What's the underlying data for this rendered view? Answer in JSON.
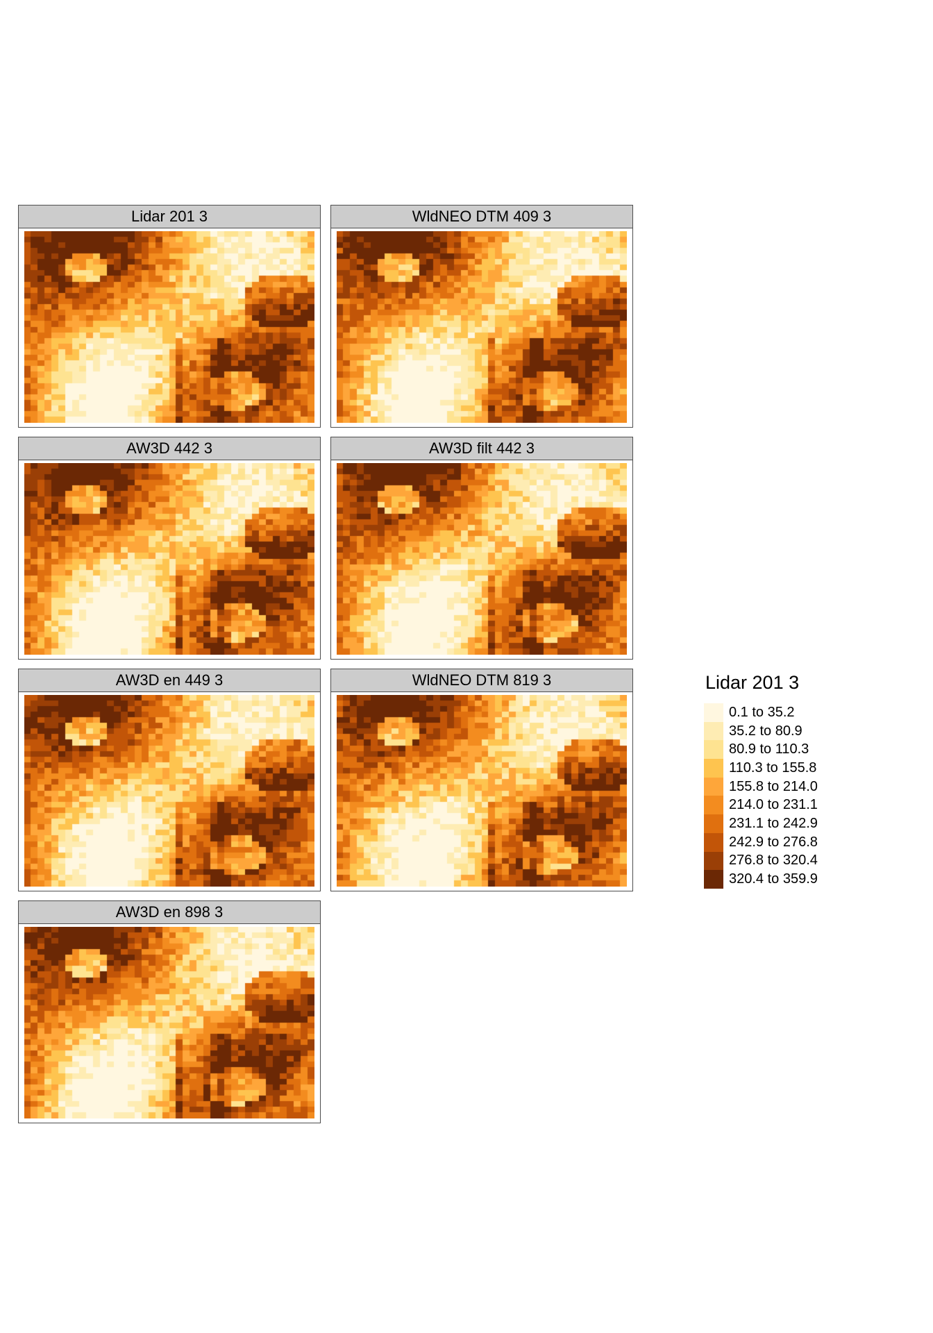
{
  "panels": [
    {
      "title": "Lidar 201 3",
      "seed": 11
    },
    {
      "title": "WldNEO DTM 409 3",
      "seed": 23
    },
    {
      "title": "AW3D 442 3",
      "seed": 37
    },
    {
      "title": "AW3D filt 442 3",
      "seed": 41
    },
    {
      "title": "AW3D en 449 3",
      "seed": 53
    },
    {
      "title": "WldNEO DTM 819 3",
      "seed": 67
    },
    {
      "title": "AW3D en 898 3",
      "seed": 79
    }
  ],
  "legend": {
    "title": "Lidar 201 3",
    "classes": [
      {
        "label": "0.1 to 35.2",
        "color": "#fff7e0"
      },
      {
        "label": "35.2 to 80.9",
        "color": "#feecb3"
      },
      {
        "label": "80.9 to 110.3",
        "color": "#fee391"
      },
      {
        "label": "110.3 to 155.8",
        "color": "#fec44f"
      },
      {
        "label": "155.8 to 214.0",
        "color": "#fea63a"
      },
      {
        "label": "214.0 to 231.1",
        "color": "#f38c1f"
      },
      {
        "label": "231.1 to 242.9",
        "color": "#e0700f"
      },
      {
        "label": "242.9 to 276.8",
        "color": "#c25508"
      },
      {
        "label": "276.8 to 320.4",
        "color": "#9a3f06"
      },
      {
        "label": "320.4 to 359.9",
        "color": "#6b2805"
      }
    ]
  }
}
